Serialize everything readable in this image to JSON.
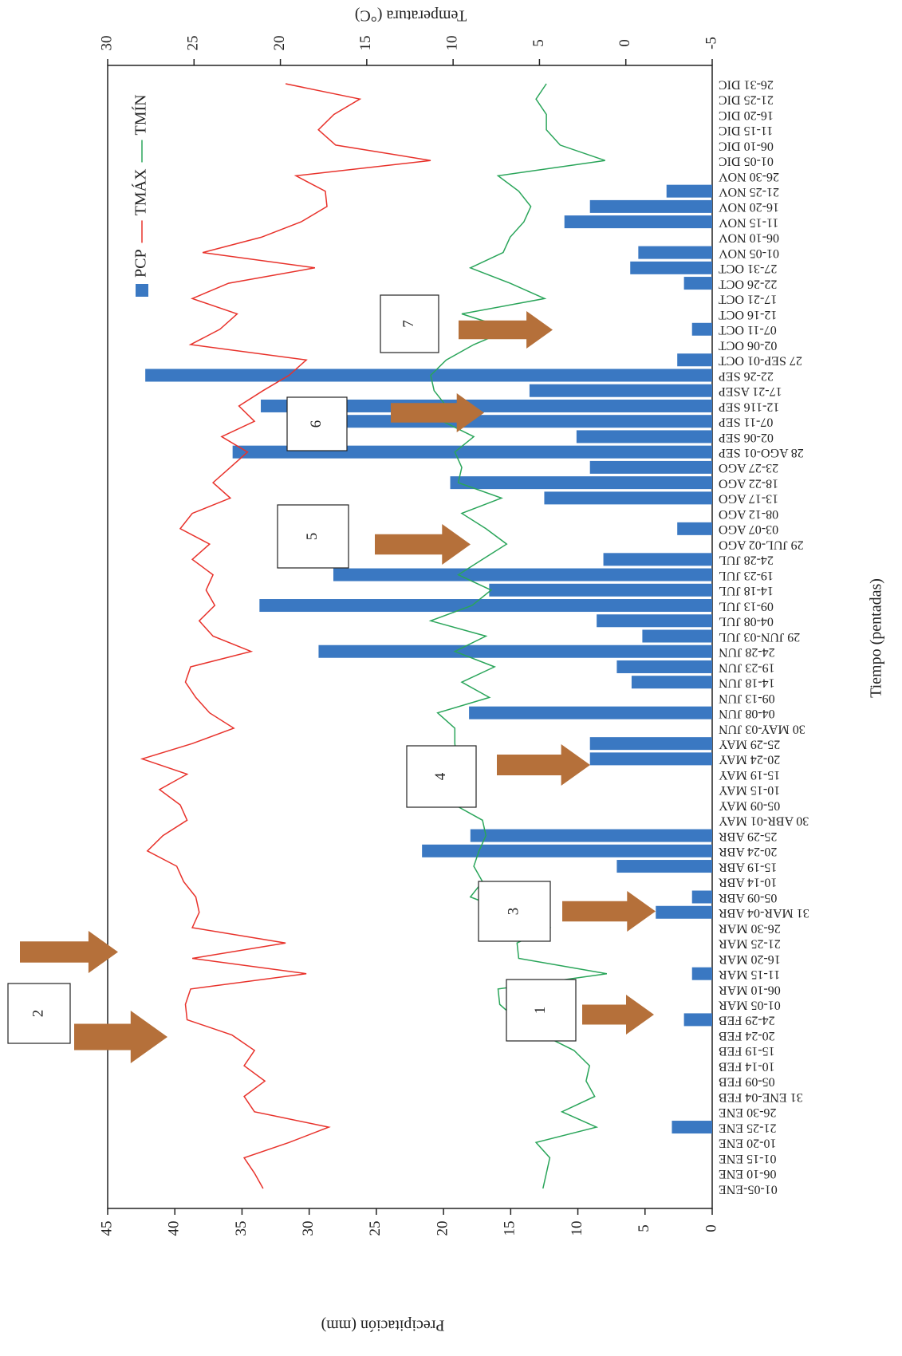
{
  "chart_data": {
    "type": "bar",
    "xlabel": "Tiempo (pentadas)",
    "ylabel": "Precipitación (mm)",
    "y2label": "Temperatura (°C)",
    "categories": [
      "01-05-ENE",
      "06-10 ENE",
      "01-15 ENE",
      "10-20 ENE",
      "21-25 ENE",
      "26-30 ENE",
      "31 ENE-04 FEB",
      "05-09 FEB",
      "10-14 FEB",
      "15-19 FEB",
      "20-24 FEB",
      "24-29 FEB",
      "01-05 MAR",
      "06-10 MAR",
      "11-15 MAR",
      "16-20 MAR",
      "21-25 MAR",
      "26-30 MAR",
      "31 MAR-04 ABR",
      "05-09 ABR",
      "10-14 ABR",
      "15-19 ABR",
      "20-24 ABR",
      "25-29 ABR",
      "30 ABR-01 MAY",
      "05-09 MAY",
      "10-15 MAY",
      "15-19 MAY",
      "20-24 MAY",
      "25-29 MAY",
      "30 MAY-03 JUN",
      "04-08 JUN",
      "09-13 JUN",
      "14-18 JUN",
      "19-23 JUN",
      "24-28 JUN",
      "29 JUN-03 JUL",
      "04-08 JUL",
      "09-13 JUL",
      "14-18 JUL",
      "19-23 JUL",
      "24-28 JUL",
      "29 JUL-02 AGO",
      "03-07 AGO",
      "08-12 AGO",
      "13-17 AGO",
      "18-22 AGO",
      "23-27 AGO",
      "28 AGO-01 SEP",
      "02-06 SEP",
      "07-11 SEP",
      "12-116 SEP",
      "17-21 ASEP",
      "22-26 SEP",
      "27 SEP-01 OCT",
      "02-06 OCT",
      "07-11 OCT",
      "12-16 OCT",
      "17-21 OCT",
      "22-26 OCT",
      "27-31 OCT",
      "01-05 NOV",
      "06-10 NOV",
      "11-15 NOV",
      "16-20 NOV",
      "21-25 NOV",
      "26-30 NOV",
      "01-05 DIC",
      "06-10 DIC",
      "11-15 DIC",
      "16-20 DIC",
      "21-25 DIC",
      "26-31 DIC"
    ],
    "series": [
      {
        "name": "PCP",
        "type": "bar",
        "color": "#3a78c2",
        "values": [
          0,
          0,
          0,
          0,
          3.0,
          0,
          0,
          0,
          0,
          0,
          0,
          2.1,
          0,
          0,
          1.5,
          0,
          0,
          0,
          4.2,
          1.5,
          0,
          7.1,
          21.6,
          18.0,
          0,
          0,
          0,
          0,
          9.1,
          9.1,
          0,
          18.1,
          0,
          6.0,
          7.1,
          29.3,
          5.2,
          8.6,
          33.7,
          16.6,
          28.2,
          8.1,
          0,
          2.6,
          0,
          12.5,
          19.5,
          9.1,
          35.7,
          10.1,
          31.6,
          33.6,
          13.6,
          42.2,
          2.6,
          0,
          1.5,
          0,
          0,
          2.1,
          6.1,
          5.5,
          0,
          11.0,
          9.1,
          3.4,
          0,
          0,
          0,
          0,
          0,
          0,
          0
        ]
      },
      {
        "name": "TMÁX",
        "type": "line",
        "axis": "y2",
        "color": "#e8322b",
        "values": [
          21.0,
          21.5,
          22.1,
          19.5,
          17.2,
          21.5,
          22.1,
          20.9,
          22.1,
          21.5,
          22.8,
          25.4,
          25.5,
          25.2,
          18.5,
          25.1,
          19.7,
          25.1,
          24.7,
          24.9,
          25.6,
          26.0,
          27.7,
          26.8,
          25.4,
          25.8,
          27.0,
          25.4,
          28.0,
          25.1,
          22.7,
          24.1,
          24.9,
          25.5,
          25.2,
          21.7,
          23.9,
          24.7,
          23.8,
          24.3,
          23.9,
          25.1,
          24.1,
          25.8,
          25.1,
          22.9,
          23.9,
          22.9,
          21.9,
          23.4,
          21.5,
          22.4,
          21.0,
          19.5,
          18.5,
          25.2,
          23.5,
          22.5,
          25.1,
          23.0,
          18.0,
          24.5,
          21.1,
          18.8,
          17.3,
          17.4,
          19.1,
          11.3,
          16.8,
          17.8,
          16.9,
          15.4,
          19.7
        ]
      },
      {
        "name": "TMÍN",
        "type": "line",
        "axis": "y2",
        "color": "#2aa55a",
        "values": [
          4.8,
          4.6,
          4.4,
          5.2,
          1.7,
          3.7,
          1.8,
          2.3,
          2.1,
          3.0,
          4.8,
          6.3,
          7.3,
          7.4,
          1.1,
          6.2,
          6.3,
          4.4,
          6.7,
          9.0,
          8.3,
          8.8,
          8.5,
          8.1,
          8.3,
          9.9,
          9.4,
          9.9,
          9.8,
          9.9,
          9.9,
          10.9,
          7.9,
          9.5,
          7.6,
          9.9,
          8.1,
          11.3,
          8.9,
          7.8,
          9.7,
          8.3,
          6.9,
          8.1,
          9.5,
          7.2,
          9.7,
          9.5,
          9.9,
          8.8,
          10.6,
          10.4,
          11.1,
          11.3,
          10.4,
          8.8,
          6.7,
          9.5,
          4.7,
          6.7,
          9.0,
          7.1,
          6.7,
          5.9,
          5.5,
          6.2,
          7.4,
          1.2,
          3.8,
          4.6,
          4.6,
          5.2,
          4.6
        ]
      }
    ],
    "ylim": [
      0,
      45
    ],
    "yticks": [
      0,
      5,
      10,
      15,
      20,
      25,
      30,
      35,
      40,
      45
    ],
    "y2lim": [
      -5,
      30
    ],
    "y2ticks": [
      -5,
      0,
      5,
      10,
      15,
      20,
      25,
      30
    ],
    "annotations": [
      "1",
      "2",
      "3",
      "4",
      "5",
      "6",
      "7"
    ],
    "arrow_color": "#b5703a"
  }
}
